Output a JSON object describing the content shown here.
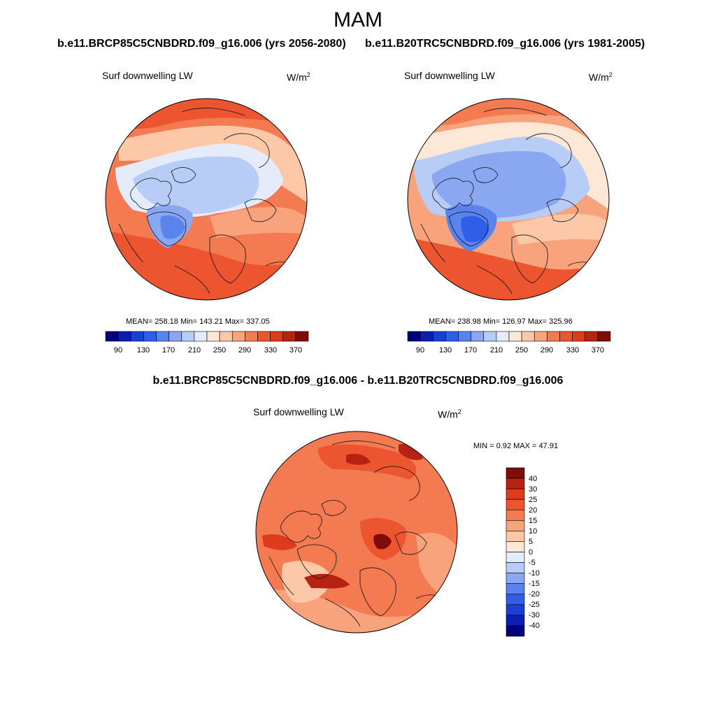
{
  "figure": {
    "season": "MAM",
    "title_left": "b.e11.BRCP85C5CNBDRD.f09_g16.006 (yrs 2056-2080)",
    "title_right": "b.e11.B20TRC5CNBDRD.f09_g16.006 (yrs 1981-2005)",
    "title_diff": "b.e11.BRCP85C5CNBDRD.f09_g16.006 - b.e11.B20TRC5CNBDRD.f09_g16.006"
  },
  "panels": {
    "left": {
      "variable": "Surf downwelling LW",
      "units_base": "W/m",
      "units_exp": "2",
      "stats": "MEAN= 258.18  Min= 143.21  Max= 337.05"
    },
    "right": {
      "variable": "Surf downwelling LW",
      "units_base": "W/m",
      "units_exp": "2",
      "stats": "MEAN= 238.98  Min= 126.97  Max= 325.96"
    },
    "diff": {
      "variable": "Surf downwelling LW",
      "units_base": "W/m",
      "units_exp": "2",
      "stats": "MIN =   0.92 MAX =  47.91"
    }
  },
  "colorbar_abs": {
    "labels": [
      "90",
      "130",
      "170",
      "210",
      "250",
      "290",
      "330",
      "370"
    ],
    "colors": [
      "#00007f",
      "#0a1fb0",
      "#1a3fd6",
      "#2f5ee8",
      "#5b83ee",
      "#8aa8f2",
      "#b8cdf6",
      "#e4ecfb",
      "#fde7d6",
      "#fcc8a8",
      "#f9a37c",
      "#f47a52",
      "#ed5430",
      "#de3a1c",
      "#b82212",
      "#800c08"
    ]
  },
  "colorbar_diff": {
    "labels": [
      "40",
      "30",
      "25",
      "20",
      "15",
      "10",
      "5",
      "0",
      "-5",
      "-10",
      "-15",
      "-20",
      "-25",
      "-30",
      "-40"
    ],
    "colors": [
      "#800c08",
      "#b82212",
      "#de3a1c",
      "#ed5430",
      "#f47a52",
      "#f9a37c",
      "#fcc8a8",
      "#fde7d6",
      "#e4ecfb",
      "#b8cdf6",
      "#8aa8f2",
      "#5b83ee",
      "#2f5ee8",
      "#1a3fd6",
      "#0a1fb0",
      "#00007f"
    ]
  }
}
